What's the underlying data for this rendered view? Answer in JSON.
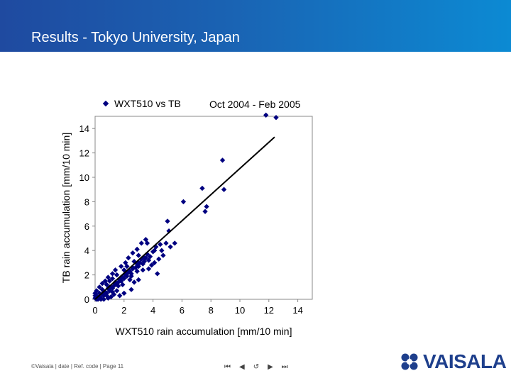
{
  "header": {
    "title": "Results - Tokyo University, Japan",
    "background_start": "#1f4aa0",
    "background_end": "#0c8ad3"
  },
  "chart_data": {
    "type": "scatter",
    "legend": "WXT510 vs TB",
    "annotation": "Oct 2004 - Feb 2005",
    "xlabel": "WXT510 rain accumulation [mm/10 min]",
    "ylabel": "TB rain accumulation [mm/10 min]",
    "xlim": [
      0,
      15
    ],
    "ylim": [
      0,
      15
    ],
    "xticks": [
      "0",
      "2",
      "4",
      "6",
      "8",
      "10",
      "12",
      "14"
    ],
    "yticks": [
      "0",
      "2",
      "4",
      "6",
      "8",
      "10",
      "12",
      "14"
    ],
    "grid": false,
    "marker_color": "#000080",
    "series": [
      {
        "name": "WXT510 vs TB",
        "points": [
          [
            0.1,
            0.0
          ],
          [
            0.2,
            0.1
          ],
          [
            0.3,
            0.2
          ],
          [
            0.1,
            0.3
          ],
          [
            0.4,
            0.1
          ],
          [
            0.5,
            0.4
          ],
          [
            0.6,
            0.3
          ],
          [
            0.3,
            0.5
          ],
          [
            0.7,
            0.6
          ],
          [
            0.8,
            0.5
          ],
          [
            0.9,
            0.9
          ],
          [
            1.0,
            0.7
          ],
          [
            0.5,
            0.8
          ],
          [
            1.1,
            1.0
          ],
          [
            1.2,
            0.9
          ],
          [
            0.8,
            1.2
          ],
          [
            1.3,
            1.1
          ],
          [
            1.4,
            1.3
          ],
          [
            1.5,
            1.2
          ],
          [
            1.0,
            1.5
          ],
          [
            1.6,
            1.4
          ],
          [
            1.7,
            1.6
          ],
          [
            1.2,
            1.7
          ],
          [
            1.8,
            1.5
          ],
          [
            1.9,
            1.8
          ],
          [
            2.0,
            1.7
          ],
          [
            1.5,
            2.0
          ],
          [
            2.1,
            2.0
          ],
          [
            2.2,
            1.9
          ],
          [
            2.3,
            2.2
          ],
          [
            2.0,
            2.4
          ],
          [
            2.4,
            2.3
          ],
          [
            2.5,
            2.1
          ],
          [
            2.6,
            2.5
          ],
          [
            2.2,
            2.7
          ],
          [
            2.8,
            2.6
          ],
          [
            2.9,
            2.9
          ],
          [
            3.0,
            2.7
          ],
          [
            2.7,
            3.1
          ],
          [
            3.1,
            3.0
          ],
          [
            3.2,
            3.3
          ],
          [
            3.4,
            3.1
          ],
          [
            3.0,
            3.6
          ],
          [
            3.5,
            3.4
          ],
          [
            3.6,
            3.7
          ],
          [
            3.8,
            3.5
          ],
          [
            4.0,
            3.9
          ],
          [
            4.2,
            4.3
          ],
          [
            3.6,
            4.6
          ],
          [
            4.5,
            4.5
          ],
          [
            4.7,
            3.6
          ],
          [
            4.9,
            4.6
          ],
          [
            5.2,
            4.3
          ],
          [
            5.0,
            6.4
          ],
          [
            5.1,
            5.6
          ],
          [
            5.5,
            4.6
          ],
          [
            4.1,
            4.0
          ],
          [
            3.3,
            2.4
          ],
          [
            3.7,
            2.5
          ],
          [
            4.3,
            2.1
          ],
          [
            4.4,
            3.3
          ],
          [
            3.9,
            2.8
          ],
          [
            2.5,
            0.8
          ],
          [
            2.0,
            0.5
          ],
          [
            1.7,
            0.3
          ],
          [
            1.3,
            0.4
          ],
          [
            0.9,
            0.1
          ],
          [
            1.5,
            0.7
          ],
          [
            2.7,
            1.4
          ],
          [
            3.0,
            1.6
          ],
          [
            1.1,
            0.2
          ],
          [
            0.6,
            0.0
          ],
          [
            0.4,
            0.0
          ],
          [
            0.2,
            0.0
          ],
          [
            0.0,
            0.1
          ],
          [
            0.0,
            0.3
          ],
          [
            0.0,
            0.5
          ],
          [
            0.1,
            0.7
          ],
          [
            0.3,
            1.0
          ],
          [
            0.5,
            1.3
          ],
          [
            0.7,
            1.5
          ],
          [
            0.9,
            1.8
          ],
          [
            1.2,
            2.1
          ],
          [
            1.4,
            2.4
          ],
          [
            1.8,
            2.7
          ],
          [
            2.1,
            3.0
          ],
          [
            2.3,
            3.4
          ],
          [
            2.6,
            3.8
          ],
          [
            2.9,
            4.1
          ],
          [
            3.2,
            4.6
          ],
          [
            3.5,
            4.9
          ],
          [
            0.6,
            0.6
          ],
          [
            1.0,
            1.0
          ],
          [
            1.4,
            1.4
          ],
          [
            1.8,
            1.8
          ],
          [
            2.2,
            2.2
          ],
          [
            2.6,
            2.6
          ],
          [
            3.0,
            3.0
          ],
          [
            3.4,
            3.4
          ],
          [
            1.6,
            1.1
          ],
          [
            2.4,
            1.6
          ],
          [
            2.9,
            2.3
          ],
          [
            3.3,
            2.9
          ],
          [
            3.7,
            3.2
          ],
          [
            4.1,
            3.0
          ],
          [
            4.6,
            4.0
          ],
          [
            0.8,
            0.3
          ],
          [
            1.2,
            0.6
          ],
          [
            1.9,
            1.2
          ],
          [
            2.5,
            1.9
          ],
          [
            6.1,
            8.0
          ],
          [
            7.7,
            7.6
          ],
          [
            7.6,
            7.2
          ],
          [
            7.4,
            9.1
          ],
          [
            8.9,
            9.0
          ],
          [
            8.8,
            11.4
          ],
          [
            11.8,
            15.1
          ],
          [
            12.5,
            14.9
          ]
        ]
      }
    ],
    "trendline": {
      "x": [
        0,
        12.4
      ],
      "y": [
        0,
        13.3
      ]
    }
  },
  "footer": {
    "text": "©Vaisala | date | Ref. code | Page 11"
  },
  "nav": {
    "first": "⏮",
    "prev": "◀",
    "back": "↺",
    "next": "▶",
    "last": "⏭"
  },
  "logo": {
    "text": "VAISALA",
    "color": "#1e3f8c"
  }
}
